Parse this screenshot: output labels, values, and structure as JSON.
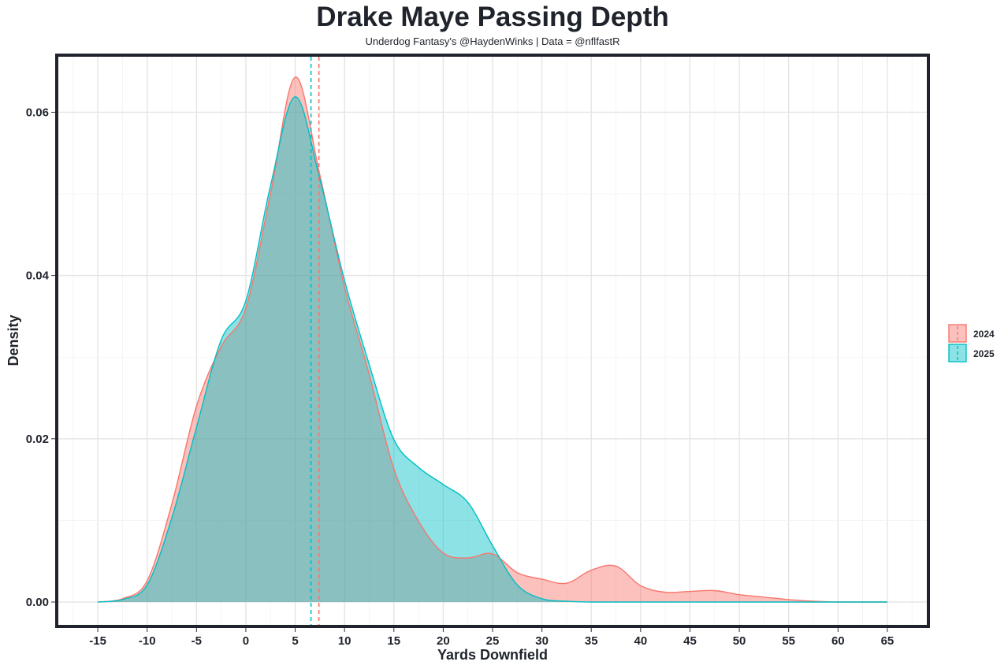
{
  "chart_data": {
    "type": "area",
    "title": "Drake Maye Passing Depth",
    "subtitle": "Underdog Fantasy's @HaydenWinks | Data = @nflfastR",
    "xlabel": "Yards Downfield",
    "ylabel": "Density",
    "xlim": [
      -19,
      69
    ],
    "ylim": [
      -0.0028,
      0.0668
    ],
    "x_ticks": [
      -15,
      -10,
      -5,
      0,
      5,
      10,
      15,
      20,
      25,
      30,
      35,
      40,
      45,
      50,
      55,
      60,
      65
    ],
    "y_ticks": [
      0,
      0.02,
      0.04,
      0.06
    ],
    "y_tick_labels": [
      "0.00",
      "0.02",
      "0.04",
      "0.06"
    ],
    "grid": true,
    "legend_position": "right",
    "x": [
      -15,
      -12.5,
      -10,
      -7.5,
      -5,
      -2.5,
      0,
      2.5,
      5,
      7.5,
      10,
      12.5,
      15,
      17.5,
      20,
      22.5,
      25,
      27.5,
      30,
      32.5,
      35,
      37.5,
      40,
      42.5,
      45,
      47.5,
      50,
      52.5,
      55,
      57.5,
      60,
      62.5,
      65
    ],
    "series": [
      {
        "name": "2024",
        "color": "#F8766D",
        "mean": 7.4,
        "values": [
          0,
          0.0004,
          0.0026,
          0.012,
          0.024,
          0.0313,
          0.036,
          0.05,
          0.0643,
          0.0523,
          0.0386,
          0.0279,
          0.0163,
          0.0099,
          0.006,
          0.0054,
          0.0059,
          0.0036,
          0.0028,
          0.0023,
          0.0039,
          0.0044,
          0.002,
          0.0012,
          0.0013,
          0.0014,
          0.0009,
          0.0006,
          0.0003,
          0.0001,
          0,
          0,
          0
        ]
      },
      {
        "name": "2025",
        "color": "#00BFC4",
        "mean": 6.6,
        "values": [
          0,
          0.0003,
          0.0021,
          0.0103,
          0.0214,
          0.0321,
          0.0369,
          0.051,
          0.0619,
          0.0518,
          0.0394,
          0.0291,
          0.0199,
          0.0165,
          0.0144,
          0.0122,
          0.0069,
          0.0021,
          0.0004,
          0.0001,
          0,
          0,
          0,
          0,
          0,
          0,
          0,
          0,
          0,
          0,
          0,
          0,
          0
        ]
      }
    ]
  }
}
